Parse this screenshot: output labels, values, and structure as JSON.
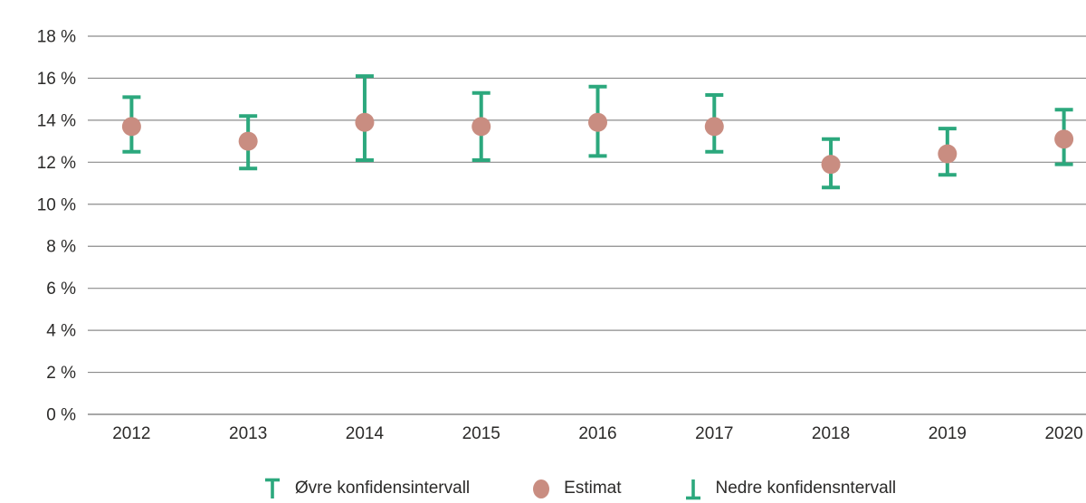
{
  "chart_data": {
    "type": "scatter",
    "description": "Dot plot of yearly estimates with upper and lower confidence interval whiskers",
    "categories": [
      "2012",
      "2013",
      "2014",
      "2015",
      "2016",
      "2017",
      "2018",
      "2019",
      "2020"
    ],
    "series": [
      {
        "name": "Øvre konfidensintervall",
        "role": "upper_ci",
        "values": [
          15.1,
          14.2,
          16.1,
          15.3,
          15.6,
          15.2,
          13.1,
          13.6,
          14.5
        ]
      },
      {
        "name": "Estimat",
        "role": "estimate",
        "values": [
          13.7,
          13.0,
          13.9,
          13.7,
          13.9,
          13.7,
          11.9,
          12.4,
          13.1
        ]
      },
      {
        "name": "Nedre konfidensntervall",
        "role": "lower_ci",
        "values": [
          12.5,
          11.7,
          12.1,
          12.1,
          12.3,
          12.5,
          10.8,
          11.4,
          11.9
        ]
      }
    ],
    "ylim": [
      0,
      18
    ],
    "yticks": [
      0,
      2,
      4,
      6,
      8,
      10,
      12,
      14,
      16,
      18
    ],
    "ytick_labels": [
      "0 %",
      "2 %",
      "4 %",
      "6 %",
      "8 %",
      "10 %",
      "12 %",
      "14 %",
      "16 %",
      "18 %"
    ],
    "xlabel": "",
    "ylabel": "",
    "grid": true,
    "legend_position": "bottom",
    "colors": {
      "confidence_interval": "#2ca87d",
      "estimate": "#c98d81",
      "gridline": "#8c8c8c",
      "zero_line": "#a8a8a8",
      "text": "#2b2a29"
    }
  }
}
